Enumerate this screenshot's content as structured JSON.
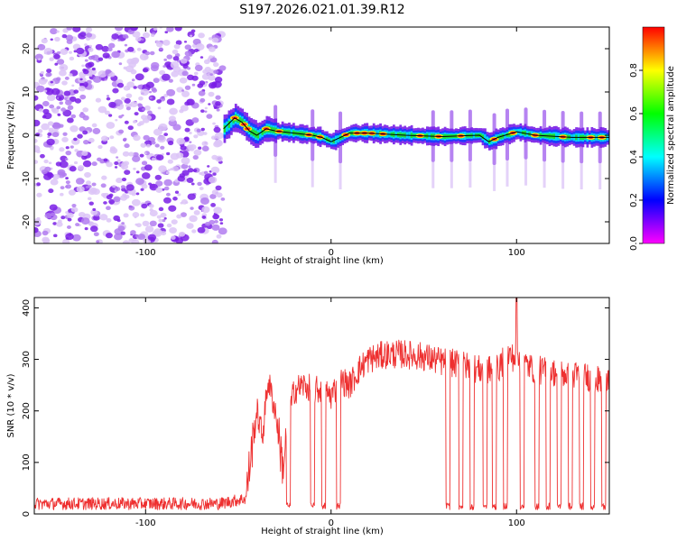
{
  "title": "S197.2026.021.01.39.R12",
  "colors": {
    "snr_line": "#ee3030",
    "frame": "#000000",
    "trend": "#000000"
  },
  "chart_data": [
    {
      "type": "heatmap",
      "xlabel": "Height of straight line (km)",
      "ylabel": "Frequency (Hz)",
      "xlim": [
        -160,
        150
      ],
      "ylim": [
        -25,
        25
      ],
      "x_ticks": [
        -100,
        0,
        100
      ],
      "x_tick_labels": [
        "-100",
        "0",
        "100"
      ],
      "y_ticks": [
        -20,
        -10,
        0,
        10,
        20
      ],
      "y_tick_labels": [
        "-20",
        "-10",
        "0",
        "10",
        "20"
      ],
      "colorbar": {
        "label": "Normalized spectral amplitude",
        "range": [
          0,
          1
        ],
        "ticks": [
          0.0,
          0.2,
          0.4,
          0.6,
          0.8
        ],
        "tick_labels": [
          "0.0",
          "0.2",
          "0.4",
          "0.6",
          "0.8"
        ],
        "colormap": [
          "#ff00ff",
          "#0000ff",
          "#00ffff",
          "#00ff00",
          "#ffff00",
          "#ff0000"
        ]
      },
      "noise_region_x": [
        -160,
        -58
      ],
      "trend": [
        {
          "x": -58,
          "y": 1.5
        },
        {
          "x": -52,
          "y": 4.0
        },
        {
          "x": -48,
          "y": 3.0
        },
        {
          "x": -44,
          "y": 1.0
        },
        {
          "x": -40,
          "y": 0.0
        },
        {
          "x": -35,
          "y": 1.5
        },
        {
          "x": -30,
          "y": 1.0
        },
        {
          "x": -20,
          "y": 0.5
        },
        {
          "x": -10,
          "y": 0.0
        },
        {
          "x": -5,
          "y": -0.5
        },
        {
          "x": 0,
          "y": -1.5
        },
        {
          "x": 5,
          "y": -0.5
        },
        {
          "x": 10,
          "y": 0.5
        },
        {
          "x": 20,
          "y": 0.5
        },
        {
          "x": 40,
          "y": 0.0
        },
        {
          "x": 60,
          "y": -0.3
        },
        {
          "x": 80,
          "y": 0.0
        },
        {
          "x": 85,
          "y": -1.5
        },
        {
          "x": 90,
          "y": -0.5
        },
        {
          "x": 100,
          "y": 0.8
        },
        {
          "x": 110,
          "y": 0.0
        },
        {
          "x": 130,
          "y": -0.5
        },
        {
          "x": 150,
          "y": -0.5
        }
      ],
      "vertical_streaks_x": [
        -30,
        -10,
        5,
        55,
        65,
        75,
        88,
        95,
        105,
        115,
        125,
        135,
        145
      ]
    },
    {
      "type": "line",
      "xlabel": "Height of straight line (km)",
      "ylabel": "SNR (10 * v/v)",
      "xlim": [
        -160,
        150
      ],
      "ylim": [
        0,
        420
      ],
      "x_ticks": [
        -100,
        0,
        100
      ],
      "x_tick_labels": [
        "-100",
        "0",
        "100"
      ],
      "y_ticks": [
        0,
        100,
        200,
        300,
        400
      ],
      "y_tick_labels": [
        "0",
        "100",
        "200",
        "300",
        "400"
      ],
      "x": [
        -160,
        -120,
        -80,
        -60,
        -46,
        -43,
        -40,
        -37,
        -34,
        -30,
        -26,
        -22,
        -20,
        -15,
        -10,
        -5,
        0,
        5,
        10,
        15,
        20,
        30,
        40,
        50,
        60,
        70,
        80,
        90,
        95,
        100,
        110,
        120,
        130,
        140,
        150
      ],
      "y": [
        20,
        20,
        20,
        20,
        30,
        120,
        200,
        150,
        260,
        200,
        90,
        200,
        240,
        250,
        240,
        240,
        230,
        260,
        250,
        280,
        300,
        310,
        310,
        305,
        295,
        290,
        280,
        280,
        310,
        300,
        280,
        275,
        270,
        265,
        250
      ],
      "dropouts_x": [
        -23,
        -10,
        -4,
        4,
        63,
        70,
        76,
        83,
        88,
        94,
        103,
        111,
        117,
        123,
        129,
        135,
        141,
        147
      ],
      "spike": {
        "x": 100,
        "y": 420
      }
    }
  ]
}
